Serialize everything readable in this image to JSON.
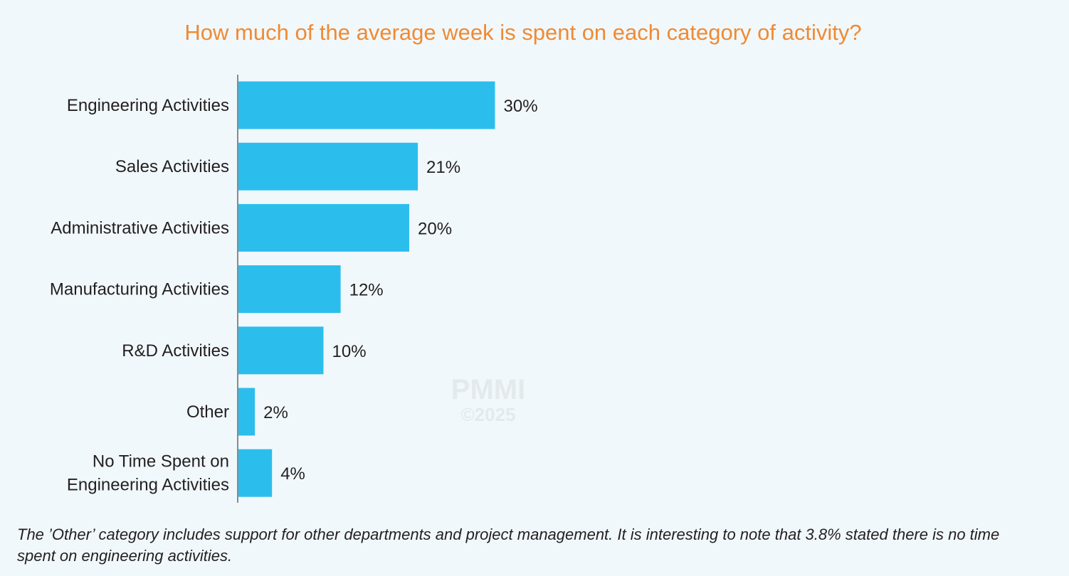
{
  "chart_data": {
    "type": "bar",
    "orientation": "horizontal",
    "title": "How much of the average week is spent on each category of activity?",
    "categories": [
      [
        "Engineering Activities"
      ],
      [
        "Sales Activities"
      ],
      [
        "Administrative Activities"
      ],
      [
        "Manufacturing Activities"
      ],
      [
        "R&D Activities"
      ],
      [
        "Other"
      ],
      [
        "No Time Spent on",
        "Engineering Activities"
      ]
    ],
    "values": [
      30,
      21,
      20,
      12,
      10,
      2,
      4
    ],
    "value_labels": [
      "30%",
      "21%",
      "20%",
      "12%",
      "10%",
      "2%",
      "4%"
    ],
    "unit": "%",
    "xlim": [
      0,
      100
    ],
    "grid": false,
    "legend": "none",
    "bar_color": "#2bbeed",
    "axis_color": "#8a8a8a"
  },
  "watermark": {
    "brand": "PMMI",
    "copyright": "©2025"
  },
  "footnote": "The ’Other’ category includes support for other departments and project management. It is interesting to note that 3.8% stated there is no time spent on engineering activities.",
  "colors": {
    "title": "#f08a32",
    "background": "#f1f8fc",
    "text": "#231f20"
  }
}
